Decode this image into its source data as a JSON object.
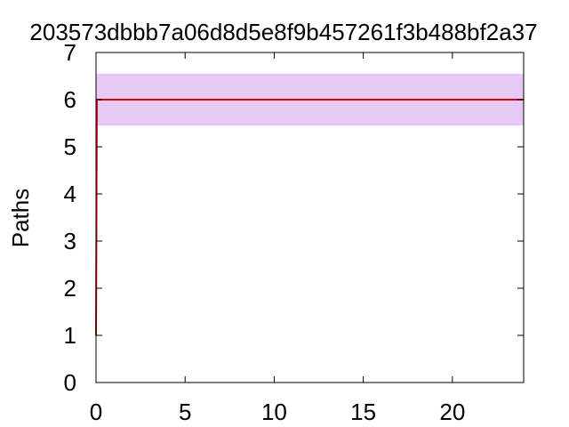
{
  "chart_data": {
    "type": "line",
    "title": "203573dbbb7a06d8d5e8f9b457261f3b488bf2a37",
    "xlabel": "",
    "ylabel": "Paths",
    "xlim": [
      0,
      24
    ],
    "ylim": [
      0,
      7
    ],
    "x_ticks": [
      0,
      5,
      10,
      15,
      20
    ],
    "y_ticks": [
      0,
      1,
      2,
      3,
      4,
      5,
      6,
      7
    ],
    "grid": false,
    "band": {
      "y_low": 5.45,
      "y_high": 6.55,
      "color": "#e8c8f4"
    },
    "series": [
      {
        "x": [
          0,
          0.05,
          24
        ],
        "y": [
          1,
          6,
          6
        ],
        "color": "#dd0000"
      }
    ]
  }
}
